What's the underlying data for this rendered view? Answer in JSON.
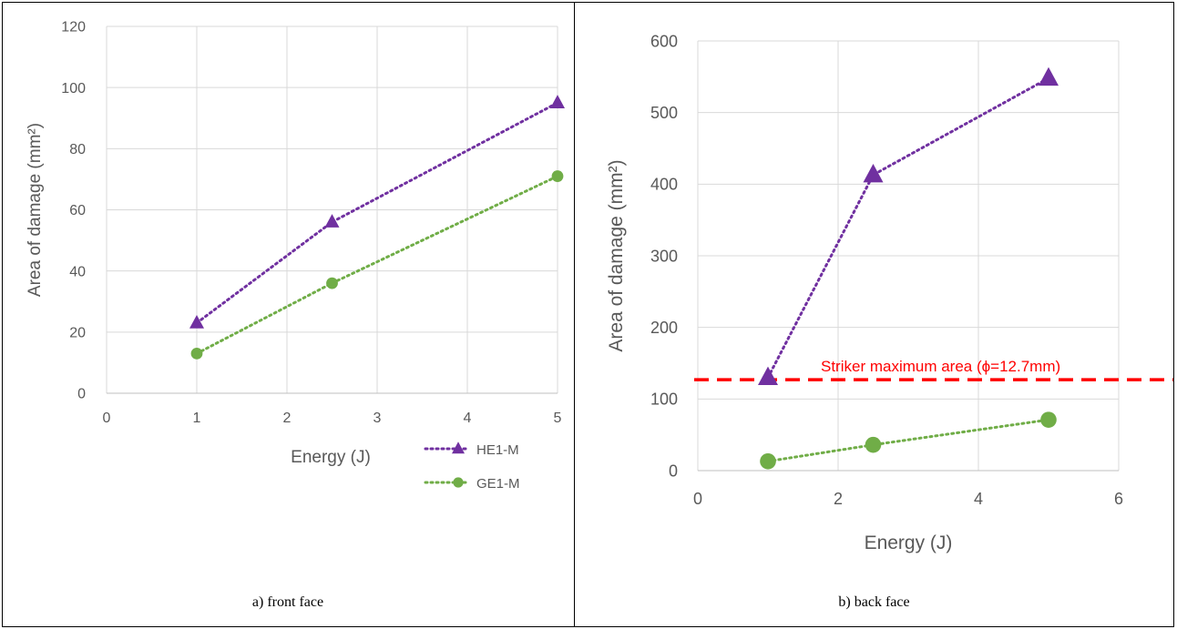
{
  "chart_data": [
    {
      "type": "line",
      "xlabel": "Energy (J)",
      "ylabel": "Area of damage (mm²)",
      "xlim": [
        0,
        5
      ],
      "ylim": [
        0,
        120
      ],
      "xticks": [
        0,
        1,
        2,
        3,
        4,
        5
      ],
      "yticks": [
        0,
        20,
        40,
        60,
        80,
        100,
        120
      ],
      "grid": true,
      "legend": "bottom-right",
      "series": [
        {
          "name": "HE1-M",
          "color": "#7030A0",
          "marker": "triangle",
          "x": [
            1,
            2.5,
            5
          ],
          "y": [
            23,
            56,
            95
          ]
        },
        {
          "name": "GE1-M",
          "color": "#70AD47",
          "marker": "circle",
          "x": [
            1,
            2.5,
            5
          ],
          "y": [
            13,
            36,
            71
          ]
        }
      ],
      "caption": "a) front face"
    },
    {
      "type": "line",
      "xlabel": "Energy (J)",
      "ylabel": "Area of damage (mm²)",
      "xlim": [
        0,
        6
      ],
      "ylim": [
        0,
        600
      ],
      "xticks": [
        0,
        2,
        4,
        6
      ],
      "yticks": [
        0,
        100,
        200,
        300,
        400,
        500,
        600
      ],
      "grid": true,
      "series": [
        {
          "color": "#7030A0",
          "marker": "triangle",
          "x": [
            1,
            2.5,
            5
          ],
          "y": [
            130,
            413,
            548
          ]
        },
        {
          "color": "#70AD47",
          "marker": "circle",
          "x": [
            1,
            2.5,
            5
          ],
          "y": [
            13,
            36,
            71
          ]
        }
      ],
      "reference_line": {
        "y": 127,
        "color": "#FF0000",
        "label": "Striker maximum area (ϕ=12.7mm)"
      },
      "caption": "b) back face"
    }
  ]
}
